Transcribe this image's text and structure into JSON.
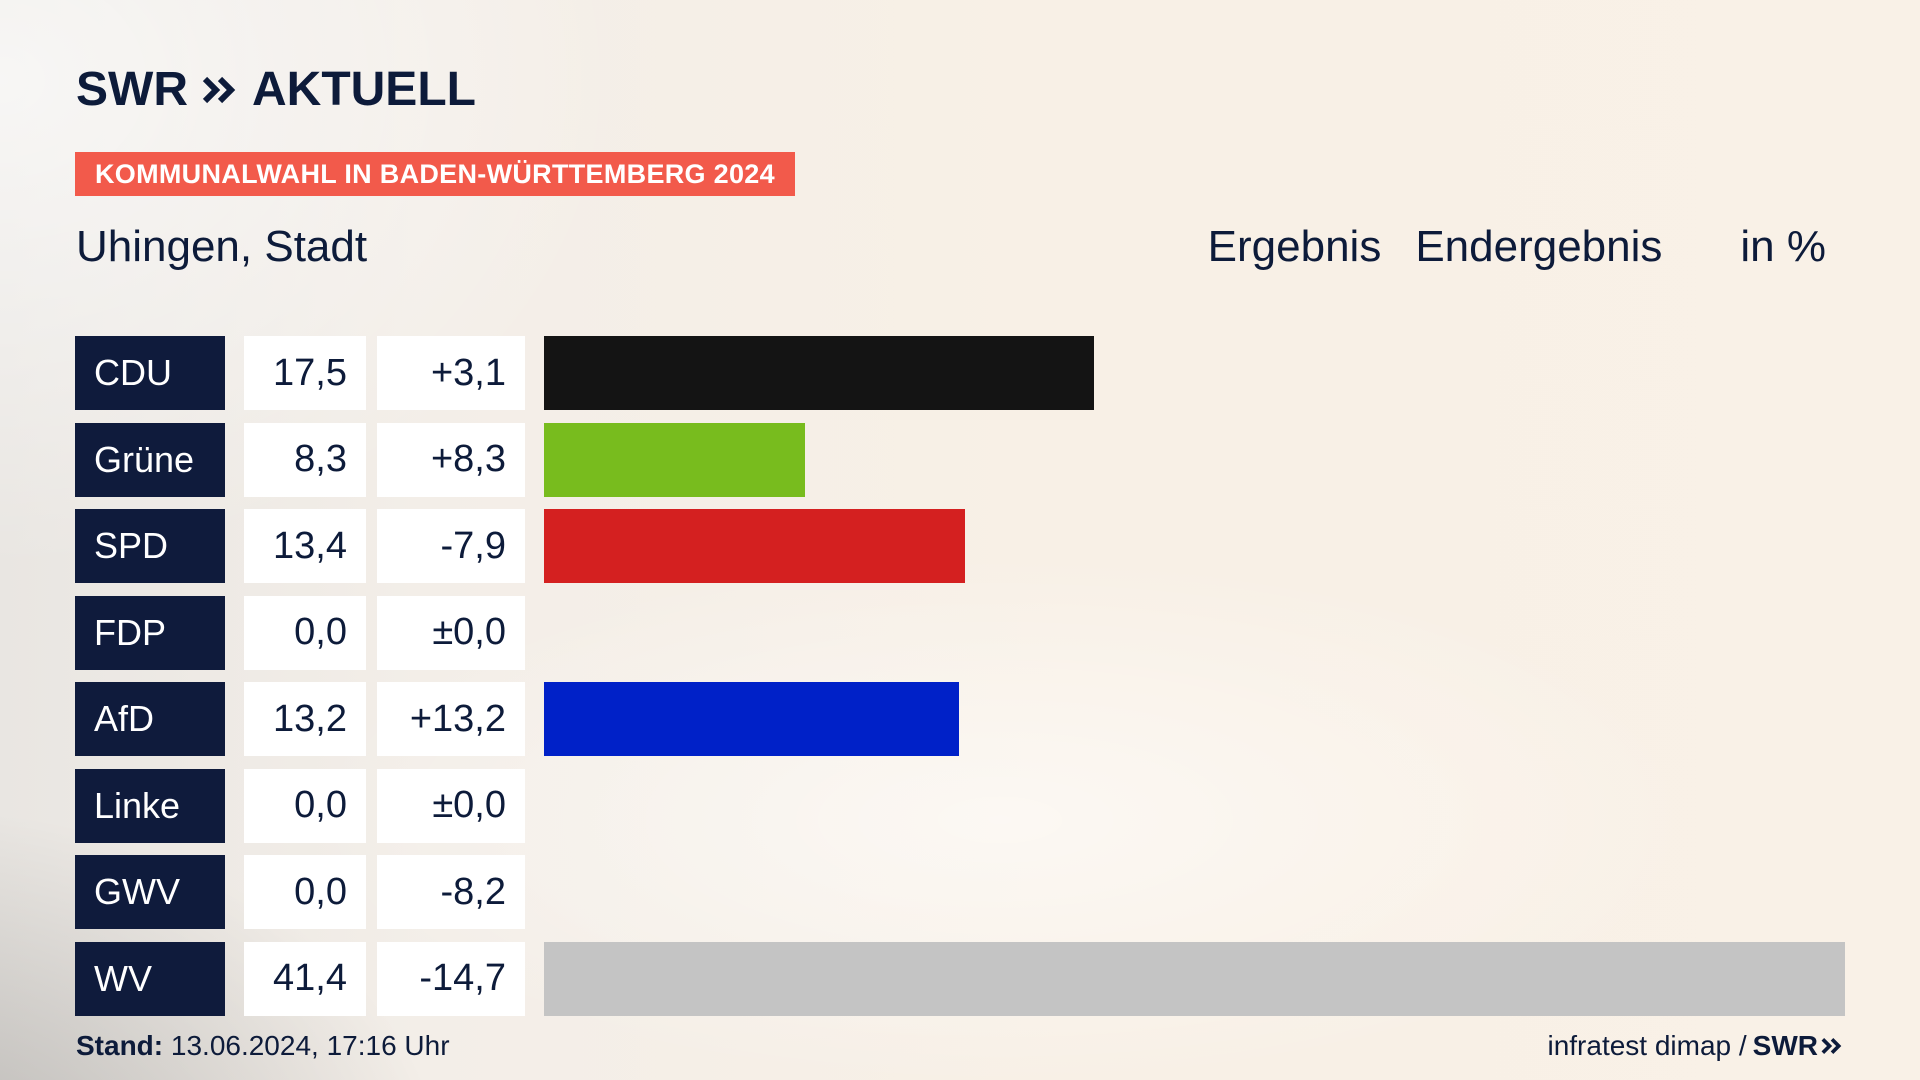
{
  "brand": {
    "name": "SWR",
    "product": "AKTUELL",
    "chevron_icon": "double-chevron-right-icon"
  },
  "election_tag": "KOMMUNALWAHL IN BADEN-WÜRTTEMBERG 2024",
  "place": "Uhingen, Stadt",
  "header": {
    "result_label": "Ergebnis",
    "status_label": "Endergebnis",
    "unit_label": "in %"
  },
  "chart_data": {
    "type": "bar",
    "orientation": "horizontal",
    "title": "Kommunalwahl in Baden-Württemberg 2024 – Uhingen, Stadt",
    "unit": "%",
    "xlim": [
      0,
      41.4
    ],
    "categories": [
      "CDU",
      "Grüne",
      "SPD",
      "FDP",
      "AfD",
      "Linke",
      "GWV",
      "WV"
    ],
    "values": [
      17.5,
      8.3,
      13.4,
      0.0,
      13.2,
      0.0,
      0.0,
      41.4
    ],
    "value_labels": [
      "17,5",
      "8,3",
      "13,4",
      "0,0",
      "13,2",
      "0,0",
      "0,0",
      "41,4"
    ],
    "diff_labels": [
      "+3,1",
      "+8,3",
      "-7,9",
      "±0,0",
      "+13,2",
      "±0,0",
      "-8,2",
      "-14,7"
    ],
    "colors": [
      "#141414",
      "#78bc1e",
      "#d42020",
      "#f5e600",
      "#0021c8",
      "#be3075",
      "#c4c4c4",
      "#c4c4c4"
    ]
  },
  "footer": {
    "stand_label": "Stand:",
    "stand_value": "13.06.2024, 17:16 Uhr",
    "source": "infratest dimap /",
    "source_brand": "SWR"
  }
}
